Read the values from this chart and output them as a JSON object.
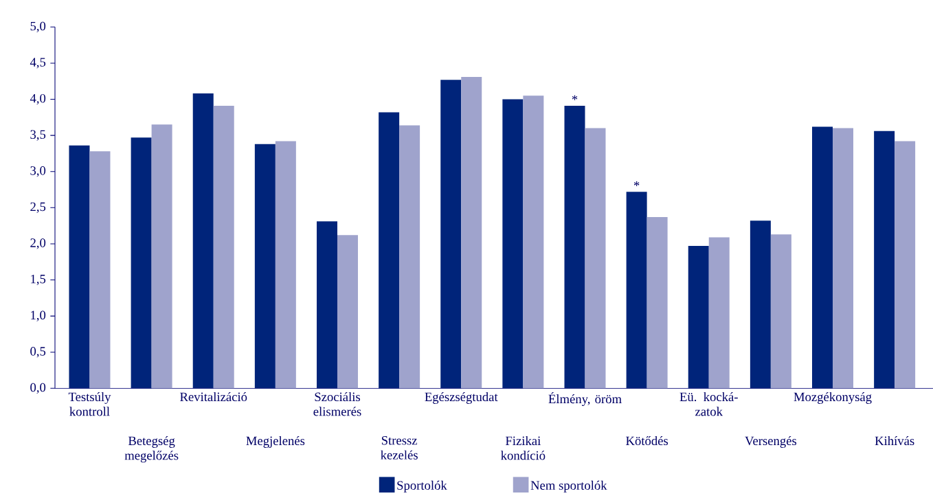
{
  "chart_data": {
    "type": "bar",
    "categories": [
      "Testsúly kontroll",
      "Betegség megelőzés",
      "Revitalizáció",
      "Megjelenés",
      "Szociális elismerés",
      "Stressz kezelés",
      "Egészségtudat",
      "Fizikai kondíció",
      "Élmény, öröm",
      "Kötődés",
      "Eü. kocká- zatok",
      "Versengés",
      "Mozgékonyság",
      "Kihívás"
    ],
    "series": [
      {
        "name": "Sportolók",
        "color": "#00247a",
        "values": [
          3.36,
          3.47,
          4.08,
          3.38,
          2.31,
          3.82,
          4.27,
          4.0,
          3.91,
          2.72,
          1.97,
          2.32,
          3.62,
          3.56
        ]
      },
      {
        "name": "Nem sportolók",
        "color": "#9fa3cc",
        "values": [
          3.28,
          3.65,
          3.91,
          3.42,
          2.12,
          3.64,
          4.31,
          4.05,
          3.6,
          2.37,
          2.09,
          2.13,
          3.6,
          3.42
        ]
      }
    ],
    "ylim": [
      0,
      5
    ],
    "yticks": [
      {
        "value": 0,
        "label": "0,0"
      },
      {
        "value": 0.5,
        "label": "0,5"
      },
      {
        "value": 1,
        "label": "1,0"
      },
      {
        "value": 1.5,
        "label": "1,5"
      },
      {
        "value": 2,
        "label": "2,0"
      },
      {
        "value": 2.5,
        "label": "2,5"
      },
      {
        "value": 3,
        "label": "3,0"
      },
      {
        "value": 3.5,
        "label": "3,5"
      },
      {
        "value": 4,
        "label": "4,0"
      },
      {
        "value": 4.5,
        "label": "4,5"
      },
      {
        "value": 5,
        "label": "5,0"
      }
    ],
    "annotations": [
      {
        "text": "*",
        "x": "Élmény, öröm",
        "y": 3.91
      },
      {
        "text": "*",
        "x": "Kötődés",
        "y": 2.72
      }
    ],
    "grid": false,
    "legend": "bottom"
  }
}
